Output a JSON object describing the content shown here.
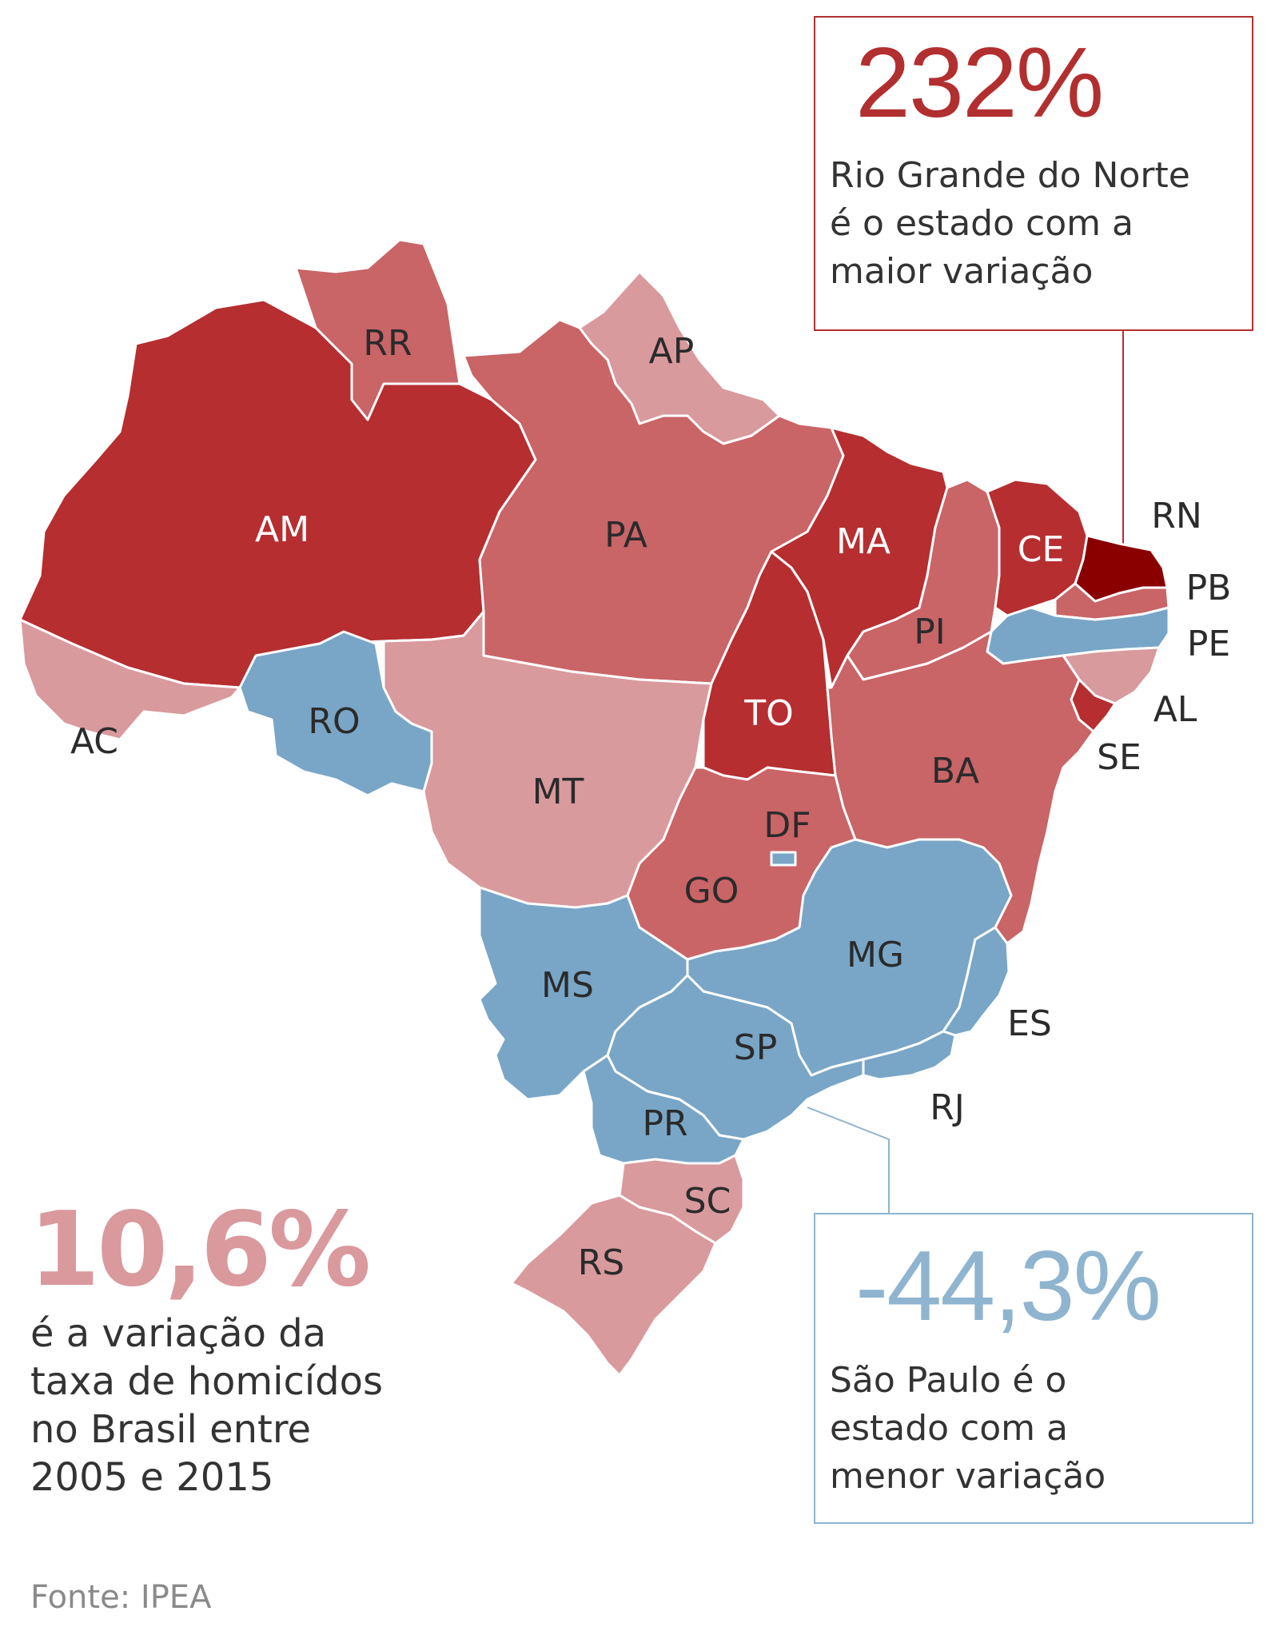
{
  "colors": {
    "dark_red": "#b62e30",
    "darkest_red": "#8a0000",
    "medium_red": "#c96467",
    "light_red": "#d99a9d",
    "blue": "#79a6c7",
    "max_accent": "#b22f30",
    "min_accent": "#8fb4cf",
    "national_accent": "#d9999d"
  },
  "states": {
    "AM": {
      "label": "AM",
      "class": "dark_red"
    },
    "RR": {
      "label": "RR",
      "class": "medium_red"
    },
    "AP": {
      "label": "AP",
      "class": "light_red"
    },
    "PA": {
      "label": "PA",
      "class": "medium_red"
    },
    "AC": {
      "label": "AC",
      "class": "light_red"
    },
    "RO": {
      "label": "RO",
      "class": "blue"
    },
    "MT": {
      "label": "MT",
      "class": "light_red"
    },
    "TO": {
      "label": "TO",
      "class": "dark_red"
    },
    "MA": {
      "label": "MA",
      "class": "dark_red"
    },
    "PI": {
      "label": "PI",
      "class": "medium_red"
    },
    "CE": {
      "label": "CE",
      "class": "dark_red"
    },
    "RN": {
      "label": "RN",
      "class": "darkest_red"
    },
    "PB": {
      "label": "PB",
      "class": "medium_red"
    },
    "PE": {
      "label": "PE",
      "class": "blue"
    },
    "AL": {
      "label": "AL",
      "class": "light_red"
    },
    "SE": {
      "label": "SE",
      "class": "dark_red"
    },
    "BA": {
      "label": "BA",
      "class": "medium_red"
    },
    "DF": {
      "label": "DF",
      "class": "blue"
    },
    "GO": {
      "label": "GO",
      "class": "medium_red"
    },
    "MS": {
      "label": "MS",
      "class": "blue"
    },
    "MG": {
      "label": "MG",
      "class": "blue"
    },
    "ES": {
      "label": "ES",
      "class": "blue"
    },
    "RJ": {
      "label": "RJ",
      "class": "blue"
    },
    "SP": {
      "label": "SP",
      "class": "blue"
    },
    "PR": {
      "label": "PR",
      "class": "blue"
    },
    "SC": {
      "label": "SC",
      "class": "light_red"
    },
    "RS": {
      "label": "RS",
      "class": "light_red"
    }
  },
  "annotation_max": {
    "value": "232%",
    "line1": "Rio Grande do Norte",
    "line2": "é o estado com a",
    "line3": "maior variação"
  },
  "annotation_min": {
    "value": "-44,3%",
    "line1": "São Paulo é o",
    "line2": "estado com a",
    "line3": "menor variação"
  },
  "national": {
    "value": "10,6%",
    "line1": "é a variação da",
    "line2": "taxa de homicídos",
    "line3": "no Brasil entre",
    "line4": "2005 e 2015"
  },
  "source": "Fonte: IPEA"
}
